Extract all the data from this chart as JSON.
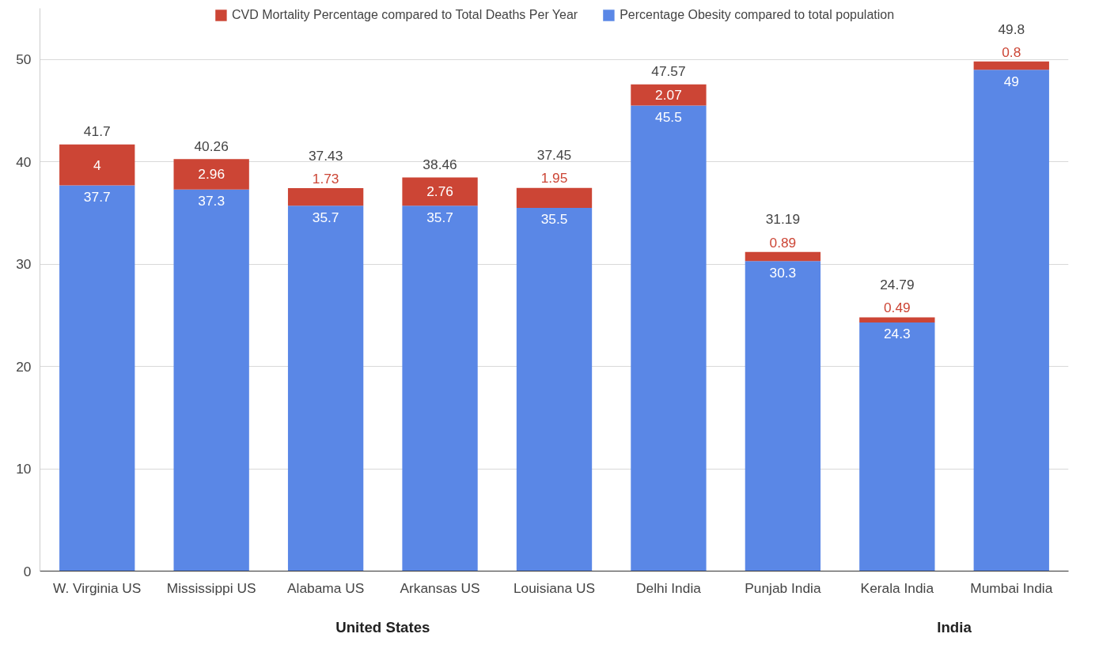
{
  "chart_data": {
    "type": "bar",
    "stacked": true,
    "categories": [
      "W. Virginia US",
      "Mississippi US",
      "Alabama US",
      "Arkansas US",
      "Louisiana US",
      "Delhi India",
      "Punjab India",
      "Kerala India",
      "Mumbai India"
    ],
    "series": [
      {
        "name": "Percentage Obesity compared to total population",
        "color": "#5a87e6",
        "values": [
          37.7,
          37.3,
          35.7,
          35.7,
          35.5,
          45.5,
          30.3,
          24.3,
          49
        ]
      },
      {
        "name": "CVD Mortality Percentage compared to Total Deaths Per Year",
        "color": "#cc4535",
        "values": [
          4,
          2.96,
          1.73,
          2.76,
          1.95,
          2.07,
          0.89,
          0.49,
          0.8
        ]
      }
    ],
    "totals": [
      "41.7",
      "40.26",
      "37.43",
      "38.46",
      "37.45",
      "47.57",
      "31.19",
      "24.79",
      "49.8"
    ],
    "data_labels": true,
    "ylim": [
      0,
      55
    ],
    "yticks": [
      0,
      10,
      20,
      30,
      40,
      50
    ],
    "grid": "y",
    "legend": "top",
    "annotations": [
      "United States",
      "India"
    ]
  }
}
